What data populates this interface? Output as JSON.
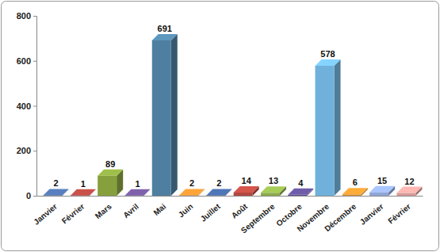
{
  "chart_data": {
    "type": "bar",
    "categories": [
      "Janvier",
      "Février",
      "Mars",
      "Avril",
      "Mai",
      "Juin",
      "Juillet",
      "Août",
      "Septembre",
      "Octobre",
      "Novembre",
      "Décembre",
      "Janvier",
      "Février"
    ],
    "values": [
      2,
      1,
      89,
      1,
      691,
      2,
      2,
      14,
      13,
      4,
      578,
      6,
      15,
      12
    ],
    "colors": [
      "#4a6aa0",
      "#a8443e",
      "#86a03e",
      "#6a5290",
      "#4f7fa0",
      "#d9892e",
      "#41639a",
      "#b2473f",
      "#8cab4a",
      "#5d4d8e",
      "#6fb1da",
      "#e0912f",
      "#8ea6d8",
      "#d89a96"
    ],
    "ylim": [
      0,
      800
    ],
    "yticks": [
      0,
      200,
      400,
      600,
      800
    ],
    "grid": false,
    "data_labels": true
  }
}
